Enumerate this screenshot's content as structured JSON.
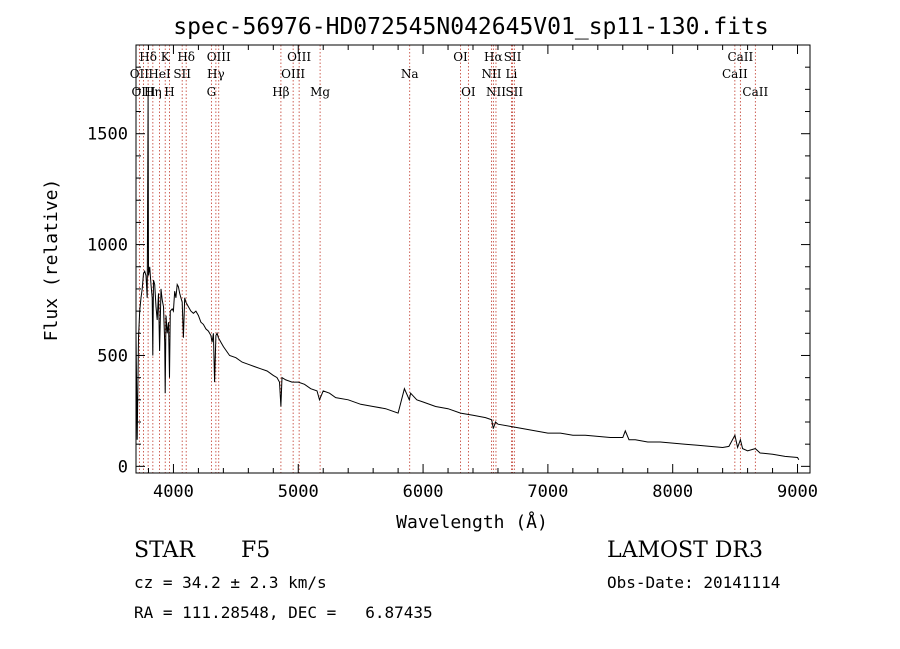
{
  "chart_data": {
    "type": "line",
    "title": "spec-56976-HD072545N042645V01_sp11-130.fits",
    "xlabel": "Wavelength (Å)",
    "ylabel": "Flux (relative)",
    "xlim": [
      3700,
      9100
    ],
    "ylim": [
      -30,
      1900
    ],
    "xticks": [
      4000,
      5000,
      6000,
      7000,
      8000,
      9000
    ],
    "xtick_labels": [
      "4000",
      "5000",
      "6000",
      "7000",
      "8000",
      "9000"
    ],
    "yticks": [
      0,
      500,
      1000,
      1500
    ],
    "ytick_labels": [
      "0",
      "500",
      "1000",
      "1500"
    ],
    "series": [
      {
        "name": "flux",
        "x": [
          3700,
          3710,
          3720,
          3730,
          3740,
          3750,
          3760,
          3770,
          3780,
          3790,
          3797,
          3800,
          3810,
          3820,
          3830,
          3835,
          3840,
          3850,
          3860,
          3870,
          3880,
          3889,
          3900,
          3910,
          3920,
          3930,
          3934,
          3940,
          3950,
          3960,
          3968,
          3975,
          3990,
          4000,
          4010,
          4020,
          4030,
          4040,
          4050,
          4060,
          4070,
          4080,
          4090,
          4100,
          4110,
          4120,
          4140,
          4160,
          4180,
          4200,
          4220,
          4240,
          4260,
          4280,
          4300,
          4310,
          4320,
          4330,
          4340,
          4350,
          4360,
          4380,
          4400,
          4450,
          4500,
          4550,
          4600,
          4650,
          4700,
          4750,
          4800,
          4830,
          4850,
          4861,
          4870,
          4900,
          4950,
          5000,
          5050,
          5100,
          5150,
          5170,
          5200,
          5250,
          5300,
          5400,
          5500,
          5600,
          5700,
          5800,
          5850,
          5890,
          5900,
          5950,
          6000,
          6100,
          6200,
          6300,
          6400,
          6500,
          6550,
          6563,
          6580,
          6600,
          6700,
          6800,
          6900,
          7000,
          7100,
          7200,
          7300,
          7400,
          7500,
          7600,
          7620,
          7650,
          7700,
          7800,
          7900,
          8000,
          8100,
          8200,
          8300,
          8400,
          8450,
          8498,
          8520,
          8542,
          8560,
          8600,
          8662,
          8700,
          8800,
          8900,
          9000,
          9010
        ],
        "y": [
          600,
          120,
          580,
          700,
          760,
          800,
          870,
          880,
          860,
          760,
          1670,
          860,
          900,
          820,
          760,
          500,
          840,
          820,
          720,
          660,
          780,
          520,
          800,
          750,
          720,
          560,
          330,
          680,
          600,
          650,
          400,
          700,
          710,
          700,
          790,
          760,
          820,
          810,
          780,
          760,
          740,
          580,
          760,
          740,
          730,
          720,
          700,
          690,
          700,
          680,
          650,
          640,
          620,
          610,
          590,
          560,
          600,
          380,
          590,
          600,
          580,
          560,
          540,
          500,
          490,
          470,
          460,
          450,
          440,
          430,
          410,
          400,
          380,
          270,
          400,
          390,
          380,
          380,
          370,
          350,
          340,
          300,
          340,
          330,
          310,
          300,
          280,
          270,
          260,
          240,
          350,
          300,
          330,
          300,
          290,
          270,
          260,
          240,
          230,
          220,
          210,
          170,
          200,
          190,
          180,
          170,
          160,
          150,
          150,
          140,
          140,
          135,
          130,
          130,
          160,
          120,
          120,
          110,
          110,
          105,
          100,
          95,
          90,
          85,
          90,
          140,
          85,
          120,
          80,
          70,
          80,
          60,
          55,
          45,
          40,
          30
        ]
      }
    ],
    "spectral_lines": [
      {
        "name": "Hδ",
        "wavelength": 3797,
        "row": 1
      },
      {
        "name": "OII",
        "wavelength": 3727,
        "row": 2
      },
      {
        "name": "OIII",
        "wavelength": 3760,
        "row": 3
      },
      {
        "name": "Hη",
        "wavelength": 3835,
        "row": 3
      },
      {
        "name": "HeI",
        "wavelength": 3889,
        "row": 2
      },
      {
        "name": "K",
        "wavelength": 3934,
        "row": 1
      },
      {
        "name": "SII",
        "wavelength": 4070,
        "row": 2
      },
      {
        "name": "H",
        "wavelength": 3968,
        "row": 3
      },
      {
        "name": "Hδ",
        "wavelength": 4102,
        "row": 1
      },
      {
        "name": "OIII",
        "wavelength": 4363,
        "row": 1
      },
      {
        "name": "Hγ",
        "wavelength": 4340,
        "row": 2
      },
      {
        "name": "G",
        "wavelength": 4304,
        "row": 3
      },
      {
        "name": "Hβ",
        "wavelength": 4861,
        "row": 3
      },
      {
        "name": "OIII",
        "wavelength": 4959,
        "row": 2
      },
      {
        "name": "OIII",
        "wavelength": 5007,
        "row": 1
      },
      {
        "name": "Mg",
        "wavelength": 5175,
        "row": 3
      },
      {
        "name": "Na",
        "wavelength": 5893,
        "row": 2
      },
      {
        "name": "OI",
        "wavelength": 6300,
        "row": 1
      },
      {
        "name": "OI",
        "wavelength": 6363,
        "row": 3
      },
      {
        "name": "Hα",
        "wavelength": 6563,
        "row": 1
      },
      {
        "name": "NII",
        "wavelength": 6548,
        "row": 2
      },
      {
        "name": "NII",
        "wavelength": 6584,
        "row": 3
      },
      {
        "name": "SII",
        "wavelength": 6717,
        "row": 1
      },
      {
        "name": "Li",
        "wavelength": 6708,
        "row": 2
      },
      {
        "name": "SII",
        "wavelength": 6731,
        "row": 3
      },
      {
        "name": "CaII",
        "wavelength": 8542,
        "row": 1
      },
      {
        "name": "CaII",
        "wavelength": 8498,
        "row": 2
      },
      {
        "name": "CaII",
        "wavelength": 8662,
        "row": 3
      }
    ]
  },
  "info": {
    "object_class": "STAR",
    "subclass": "F5",
    "survey": "LAMOST DR3",
    "redshift": "cz = 34.2 ± 2.3 km/s",
    "obs_date": "Obs-Date: 20141114",
    "coords": "RA = 111.28548, DEC =   6.87435"
  }
}
